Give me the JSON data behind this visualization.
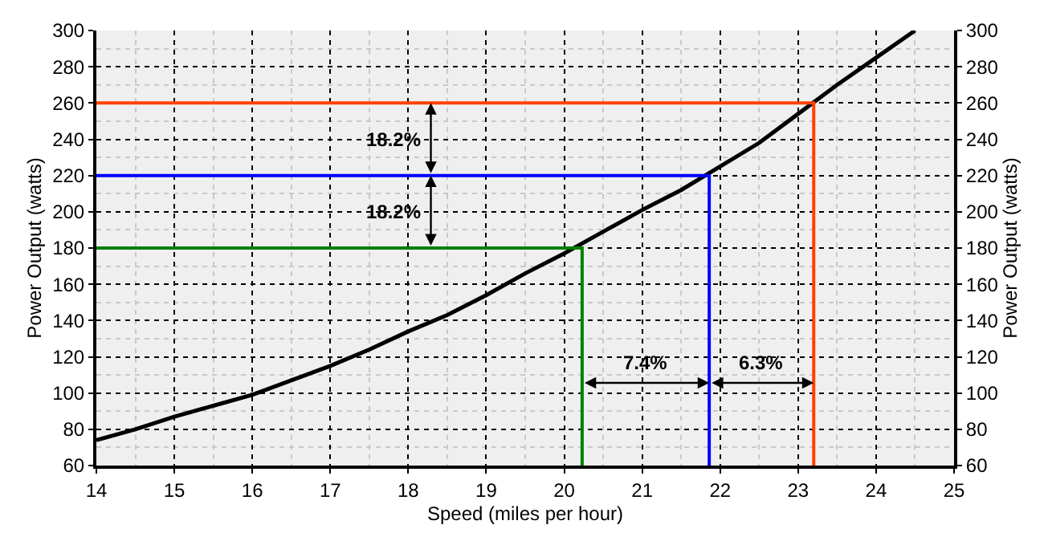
{
  "chart_data": {
    "type": "line",
    "xlabel": "Speed (miles per hour)",
    "ylabel": "Power Output (watts)",
    "y2label": "Power Output (watts)",
    "xlim": [
      14,
      25
    ],
    "xticks": [
      14,
      15,
      16,
      17,
      18,
      19,
      20,
      21,
      22,
      23,
      24,
      25
    ],
    "ylim": [
      60,
      300
    ],
    "yticks": [
      60,
      80,
      100,
      120,
      140,
      160,
      180,
      200,
      220,
      240,
      260,
      280,
      300
    ],
    "y2lim": [
      60,
      300
    ],
    "y2ticks": [
      60,
      80,
      100,
      120,
      140,
      160,
      180,
      200,
      220,
      240,
      260,
      280,
      300
    ],
    "grid": true,
    "marker": "none",
    "line_style": "solid",
    "series": [
      {
        "color": "#000000",
        "x": [
          14,
          14.5,
          15,
          15.5,
          16,
          16.5,
          17,
          17.5,
          18,
          18.5,
          19,
          19.5,
          20,
          20.5,
          21,
          21.5,
          22,
          22.5,
          23,
          23.5,
          24,
          24.5
        ],
        "values": [
          74,
          80,
          87,
          93,
          99,
          107,
          115,
          124,
          134,
          143,
          154,
          166,
          177,
          189,
          201,
          212,
          225,
          238,
          254,
          270,
          285,
          300
        ]
      },
      {
        "color": "#008000",
        "x": [
          14,
          20.23,
          20.23
        ],
        "values": [
          180,
          180,
          60
        ]
      },
      {
        "color": "#0000ff",
        "x": [
          14,
          21.86,
          21.86
        ],
        "values": [
          220,
          220,
          60
        ]
      },
      {
        "color": "#ff4000",
        "x": [
          14,
          23.2,
          23.2
        ],
        "values": [
          260,
          260,
          60
        ]
      }
    ],
    "annotations": [
      "18.2%",
      "18.2%",
      "7.4%",
      "6.3%"
    ]
  }
}
